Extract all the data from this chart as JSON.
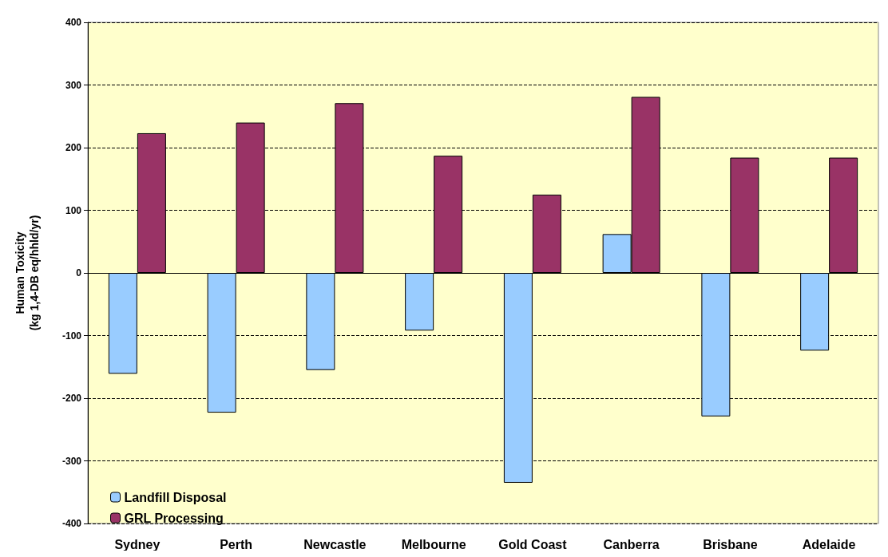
{
  "chart_data": {
    "type": "bar",
    "ylabel": "Human Toxicity\n(kg 1,4-DB eq/hhld/yr)",
    "categories": [
      "Sydney",
      "Perth",
      "Newcastle",
      "Melbourne",
      "Gold Coast",
      "Canberra",
      "Brisbane",
      "Adelaide"
    ],
    "series": [
      {
        "name": "Landfill Disposal",
        "color": "#99ccff",
        "values": [
          -161,
          -223,
          -155,
          -92,
          -335,
          62,
          -229,
          -124
        ]
      },
      {
        "name": "GRL Processing",
        "color": "#993366",
        "values": [
          223,
          240,
          271,
          187,
          125,
          281,
          184,
          184
        ]
      }
    ],
    "ylim": [
      -400,
      400
    ],
    "yticks": [
      -400,
      -300,
      -200,
      -100,
      0,
      100,
      200,
      300,
      400
    ],
    "grid": "y",
    "legend": "bottom left"
  }
}
